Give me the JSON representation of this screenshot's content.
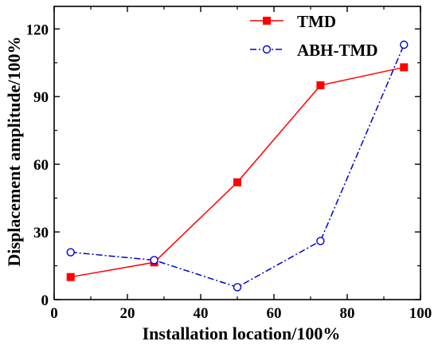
{
  "chart_data": {
    "type": "line",
    "title": "",
    "xlabel": "Installation location/100%",
    "ylabel": "Displacement amplitude/100%",
    "xlim": [
      0,
      100
    ],
    "ylim": [
      0,
      130
    ],
    "xticks": [
      0,
      20,
      40,
      60,
      80,
      100
    ],
    "yticks": [
      0,
      30,
      60,
      90,
      120
    ],
    "grid": false,
    "legend_position": "top-right",
    "series": [
      {
        "name": "TMD",
        "color": "#ff0000",
        "marker": "filled-square",
        "line": "solid",
        "x": [
          4.5,
          27.3,
          50,
          72.7,
          95.5
        ],
        "y": [
          10,
          16.5,
          52,
          95,
          103
        ]
      },
      {
        "name": "ABH-TMD",
        "color": "#0000cc",
        "marker": "open-circle",
        "line": "dash-dot",
        "x": [
          4.5,
          27.3,
          50,
          72.7,
          95.5
        ],
        "y": [
          21,
          17.5,
          5.5,
          26,
          113
        ]
      }
    ]
  }
}
